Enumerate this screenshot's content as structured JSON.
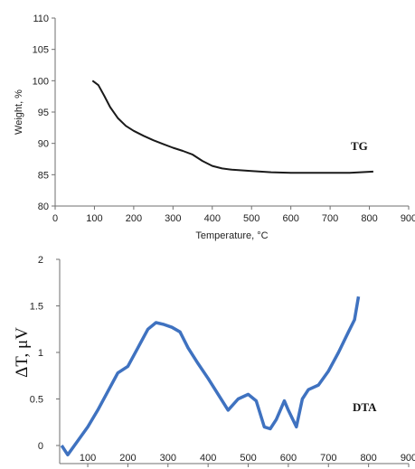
{
  "chart_data": [
    {
      "type": "line",
      "title": "",
      "xlabel": "Temperature, °C",
      "ylabel": "Weight, %",
      "xlim": [
        0,
        900
      ],
      "ylim": [
        80,
        110
      ],
      "x_ticks": [
        "0",
        "100",
        "200",
        "300",
        "400",
        "500",
        "600",
        "700",
        "800",
        "900"
      ],
      "y_ticks": [
        "80",
        "85",
        "90",
        "95",
        "100",
        "105",
        "110"
      ],
      "grid": false,
      "series": [
        {
          "name": "TG",
          "color": "#1a1a1a",
          "x": [
            95,
            110,
            125,
            140,
            160,
            180,
            200,
            225,
            250,
            275,
            300,
            325,
            350,
            375,
            400,
            425,
            450,
            500,
            550,
            600,
            650,
            700,
            750,
            810
          ],
          "y": [
            100,
            99.3,
            97.6,
            95.8,
            94.0,
            92.8,
            92.0,
            91.2,
            90.5,
            89.9,
            89.3,
            88.8,
            88.2,
            87.2,
            86.4,
            86.0,
            85.8,
            85.6,
            85.4,
            85.3,
            85.3,
            85.3,
            85.3,
            85.5
          ]
        }
      ]
    },
    {
      "type": "line",
      "title": "",
      "xlabel": "",
      "ylabel": "ΔT, μV",
      "xlim": [
        30,
        900
      ],
      "ylim": [
        0,
        2
      ],
      "x_ticks": [
        "100",
        "200",
        "300",
        "400",
        "500",
        "600",
        "700",
        "800",
        "900"
      ],
      "y_ticks": [
        "0",
        "0.5",
        "1",
        "1.5",
        "2"
      ],
      "grid": false,
      "series": [
        {
          "name": "DTA",
          "color": "#3f72c0",
          "x": [
            35,
            50,
            75,
            100,
            125,
            150,
            175,
            200,
            225,
            250,
            270,
            290,
            310,
            330,
            350,
            375,
            400,
            425,
            450,
            475,
            500,
            520,
            540,
            555,
            570,
            590,
            600,
            620,
            635,
            650,
            675,
            700,
            725,
            750,
            765,
            775
          ],
          "y": [
            0.0,
            -0.1,
            0.05,
            0.2,
            0.38,
            0.58,
            0.78,
            0.85,
            1.05,
            1.25,
            1.32,
            1.3,
            1.27,
            1.22,
            1.05,
            0.88,
            0.72,
            0.55,
            0.38,
            0.5,
            0.55,
            0.48,
            0.2,
            0.18,
            0.28,
            0.48,
            0.38,
            0.2,
            0.5,
            0.6,
            0.65,
            0.8,
            1.0,
            1.22,
            1.35,
            1.6
          ]
        }
      ]
    }
  ]
}
